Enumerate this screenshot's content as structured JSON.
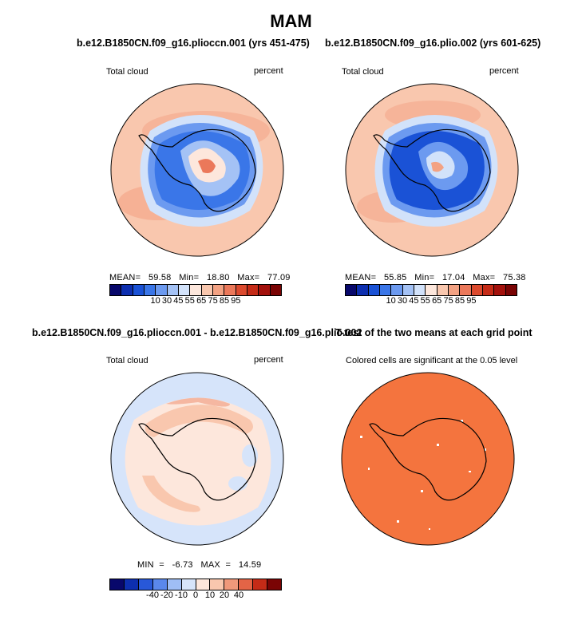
{
  "title": "MAM",
  "panels": [
    {
      "title": "b.e12.B1850CN.f09_g16.plioccn.001 (yrs 451-475)",
      "left_label": "Total cloud",
      "right_label": "percent",
      "stats": "MEAN=   59.58   Min=   18.80   Max=   77.09"
    },
    {
      "title": "b.e12.B1850CN.f09_g16.plio.002 (yrs 601-625)",
      "left_label": "Total cloud",
      "right_label": "percent",
      "stats": "MEAN=   55.85   Min=   17.04   Max=   75.38"
    },
    {
      "title": "b.e12.B1850CN.f09_g16.plioccn.001 - b.e12.B1850CN.f09_g16.plio.002",
      "left_label": "Total cloud",
      "right_label": "percent",
      "stats": "MIN  =   -6.73   MAX  =   14.59"
    },
    {
      "title": "T-test of the two means at each grid point",
      "left_label": "Colored cells are significant at the 0.05 level",
      "right_label": ""
    }
  ],
  "colorbar_abs": {
    "labels": [
      "10",
      "30",
      "45",
      "55",
      "65",
      "75",
      "85",
      "95"
    ],
    "colors": [
      "#08086b",
      "#0d2fb0",
      "#1a52d6",
      "#3a76e8",
      "#6c9af0",
      "#a4c2f5",
      "#d2e2fa",
      "#fde7dc",
      "#f9c7ae",
      "#f3a283",
      "#eb785a",
      "#dc4a2e",
      "#c52b17",
      "#a3110c",
      "#7a0404"
    ]
  },
  "colorbar_diff": {
    "labels": [
      "-40",
      "-20",
      "-10",
      "0",
      "10",
      "20",
      "40"
    ],
    "colors": [
      "#08086b",
      "#0d2fb0",
      "#2858d8",
      "#5a88ec",
      "#9fbef5",
      "#d6e4fa",
      "#fde7dc",
      "#f9c7ae",
      "#f0987a",
      "#e36446",
      "#c52b17",
      "#7a0404"
    ]
  },
  "legend_colors": {
    "significant": "#f4743e",
    "coast": "#000000"
  }
}
